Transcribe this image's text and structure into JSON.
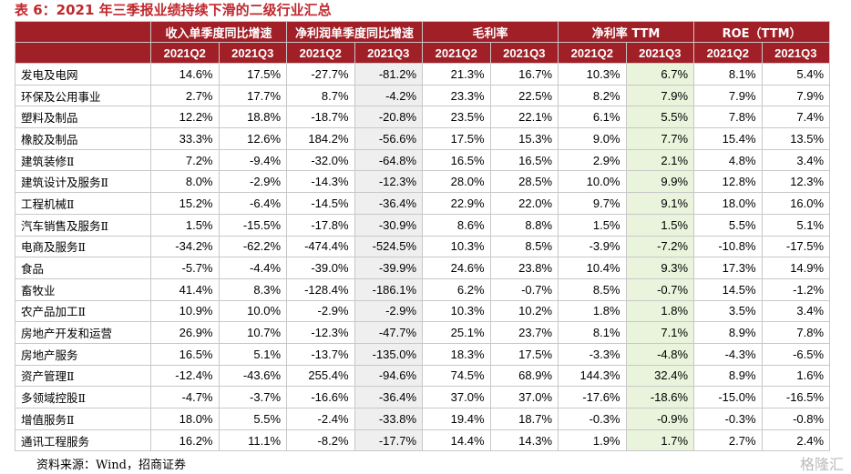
{
  "title": "表 6：2021 年三季报业绩持续下滑的二级行业汇总",
  "table": {
    "groups": [
      "收入单季度同比增速",
      "净利润单季度同比增速",
      "毛利率",
      "净利率 TTM",
      "ROE（TTM）"
    ],
    "subheaders": [
      "2021Q2",
      "2021Q3",
      "2021Q2",
      "2021Q3",
      "2021Q2",
      "2021Q3",
      "2021Q2",
      "2021Q3",
      "2021Q2",
      "2021Q3"
    ],
    "rows": [
      [
        "发电及电网",
        "14.6%",
        "17.5%",
        "-27.7%",
        "-81.2%",
        "21.3%",
        "16.7%",
        "10.3%",
        "6.7%",
        "8.1%",
        "5.4%"
      ],
      [
        "环保及公用事业",
        "2.7%",
        "17.7%",
        "8.7%",
        "-4.2%",
        "23.3%",
        "22.5%",
        "8.2%",
        "7.9%",
        "7.9%",
        "7.9%"
      ],
      [
        "塑料及制品",
        "12.2%",
        "18.8%",
        "-18.7%",
        "-20.8%",
        "23.5%",
        "22.1%",
        "6.1%",
        "5.5%",
        "7.8%",
        "7.4%"
      ],
      [
        "橡胶及制品",
        "33.3%",
        "12.6%",
        "184.2%",
        "-56.6%",
        "17.5%",
        "15.3%",
        "9.0%",
        "7.7%",
        "15.4%",
        "13.5%"
      ],
      [
        "建筑装修Ⅱ",
        "7.2%",
        "-9.4%",
        "-32.0%",
        "-64.8%",
        "16.5%",
        "16.5%",
        "2.9%",
        "2.1%",
        "4.8%",
        "3.4%"
      ],
      [
        "建筑设计及服务Ⅱ",
        "8.0%",
        "-2.9%",
        "-14.3%",
        "-12.3%",
        "28.0%",
        "28.5%",
        "10.0%",
        "9.9%",
        "12.8%",
        "12.3%"
      ],
      [
        "工程机械Ⅱ",
        "15.2%",
        "-6.4%",
        "-14.5%",
        "-36.4%",
        "22.9%",
        "22.0%",
        "9.7%",
        "9.1%",
        "18.0%",
        "16.0%"
      ],
      [
        "汽车销售及服务Ⅱ",
        "1.5%",
        "-15.5%",
        "-17.8%",
        "-30.9%",
        "8.6%",
        "8.8%",
        "1.5%",
        "1.5%",
        "5.5%",
        "5.1%"
      ],
      [
        "电商及服务Ⅱ",
        "-34.2%",
        "-62.2%",
        "-474.4%",
        "-524.5%",
        "10.3%",
        "8.5%",
        "-3.9%",
        "-7.2%",
        "-10.8%",
        "-17.5%"
      ],
      [
        "食品",
        "-5.7%",
        "-4.4%",
        "-39.0%",
        "-39.9%",
        "24.6%",
        "23.8%",
        "10.4%",
        "9.3%",
        "17.3%",
        "14.9%"
      ],
      [
        "畜牧业",
        "41.4%",
        "8.3%",
        "-128.4%",
        "-186.1%",
        "6.2%",
        "-0.7%",
        "8.5%",
        "-0.7%",
        "14.5%",
        "-1.2%"
      ],
      [
        "农产品加工Ⅱ",
        "10.9%",
        "10.0%",
        "-2.9%",
        "-2.9%",
        "10.3%",
        "10.2%",
        "1.8%",
        "1.8%",
        "3.5%",
        "3.4%"
      ],
      [
        "房地产开发和运营",
        "26.9%",
        "10.7%",
        "-12.3%",
        "-47.7%",
        "25.1%",
        "23.7%",
        "8.1%",
        "7.1%",
        "8.9%",
        "7.8%"
      ],
      [
        "房地产服务",
        "16.5%",
        "5.1%",
        "-13.7%",
        "-135.0%",
        "18.3%",
        "17.5%",
        "-3.3%",
        "-4.8%",
        "-4.3%",
        "-6.5%"
      ],
      [
        "资产管理Ⅱ",
        "-12.4%",
        "-43.6%",
        "255.4%",
        "-94.6%",
        "74.5%",
        "68.9%",
        "144.3%",
        "32.4%",
        "8.9%",
        "1.6%"
      ],
      [
        "多领域控股Ⅱ",
        "-4.7%",
        "-3.7%",
        "-16.6%",
        "-36.4%",
        "37.0%",
        "37.0%",
        "-17.6%",
        "-18.6%",
        "-15.0%",
        "-16.5%"
      ],
      [
        "增值服务Ⅱ",
        "18.0%",
        "5.5%",
        "-2.4%",
        "-33.8%",
        "19.4%",
        "18.7%",
        "-0.3%",
        "-0.9%",
        "-0.3%",
        "-0.8%"
      ],
      [
        "通讯工程服务",
        "16.2%",
        "11.1%",
        "-8.2%",
        "-17.7%",
        "14.4%",
        "14.3%",
        "1.9%",
        "1.7%",
        "2.7%",
        "2.4%"
      ]
    ]
  },
  "source": "资料来源：Wind，招商证券",
  "watermark": "格隆汇"
}
